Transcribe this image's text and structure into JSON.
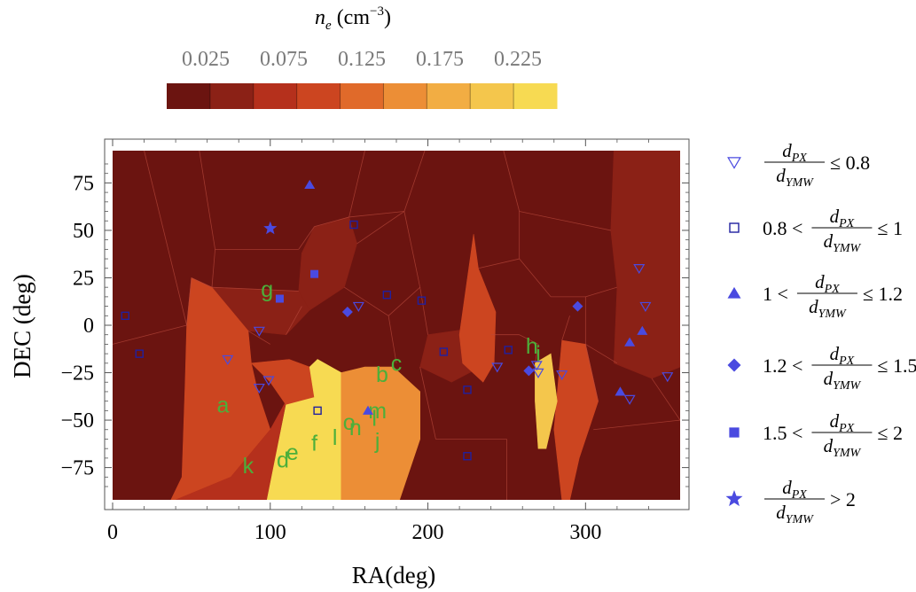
{
  "chart_data": {
    "type": "scatter",
    "xlabel": "RA(deg)",
    "ylabel": "DEC (deg)",
    "xlim": [
      0,
      360
    ],
    "ylim": [
      -92,
      92
    ],
    "xticks": [
      "0",
      "100",
      "200",
      "300"
    ],
    "xtick_values": [
      0,
      100,
      200,
      300
    ],
    "yticks": [
      "75",
      "50",
      "25",
      "0",
      "−25",
      "−50",
      "−75"
    ],
    "ytick_values": [
      75,
      50,
      25,
      0,
      -25,
      -50,
      -75
    ],
    "colorbar": {
      "title_base": "n",
      "title_sub": "e",
      "title_unit": " (cm",
      "title_exp": "−3",
      "title_close": ")",
      "tick_labels": [
        "0.025",
        "0.075",
        "0.125",
        "0.175",
        "0.225"
      ],
      "tick_values": [
        0.025,
        0.075,
        0.125,
        0.175,
        0.225
      ],
      "colors": [
        "#6b1410",
        "#8b2116",
        "#b5301c",
        "#cc4520",
        "#e06a2a",
        "#ec8e36",
        "#f2ad43",
        "#f4c64c",
        "#f7da52"
      ]
    },
    "regions": [
      {
        "color": "#6b1410",
        "points": [
          [
            0,
            92
          ],
          [
            360,
            92
          ],
          [
            360,
            -92
          ],
          [
            0,
            -92
          ]
        ]
      },
      {
        "color": "#8b2116",
        "points": [
          [
            318,
            92
          ],
          [
            360,
            92
          ],
          [
            360,
            -22
          ],
          [
            342,
            -28
          ],
          [
            318,
            -20
          ],
          [
            320,
            20
          ],
          [
            316,
            50
          ]
        ]
      },
      {
        "color": "#8b2116",
        "points": [
          [
            128,
            52
          ],
          [
            150,
            57
          ],
          [
            155,
            43
          ],
          [
            147,
            20
          ],
          [
            125,
            8
          ],
          [
            118,
            18
          ],
          [
            120,
            38
          ]
        ]
      },
      {
        "color": "#8b2116",
        "points": [
          [
            63,
            20
          ],
          [
            118,
            18
          ],
          [
            125,
            8
          ],
          [
            110,
            -5
          ],
          [
            86,
            -3
          ],
          [
            78,
            5
          ],
          [
            65,
            10
          ]
        ]
      },
      {
        "color": "#8b2116",
        "points": [
          [
            200,
            -5
          ],
          [
            225,
            -2
          ],
          [
            240,
            -5
          ],
          [
            238,
            -20
          ],
          [
            215,
            -30
          ],
          [
            195,
            -22
          ]
        ]
      },
      {
        "color": "#cc4520",
        "points": [
          [
            50,
            25
          ],
          [
            63,
            20
          ],
          [
            78,
            5
          ],
          [
            86,
            -3
          ],
          [
            88,
            -20
          ],
          [
            92,
            -35
          ],
          [
            100,
            -55
          ],
          [
            75,
            -80
          ],
          [
            40,
            -92
          ],
          [
            37,
            -92
          ],
          [
            44,
            -80
          ],
          [
            46,
            -30
          ],
          [
            47,
            0
          ]
        ]
      },
      {
        "color": "#b5301c",
        "points": [
          [
            40,
            -92
          ],
          [
            75,
            -80
          ],
          [
            100,
            -55
          ],
          [
            110,
            -40
          ],
          [
            98,
            -92
          ]
        ]
      },
      {
        "color": "#cc4520",
        "points": [
          [
            88,
            -20
          ],
          [
            112,
            -18
          ],
          [
            125,
            -22
          ],
          [
            128,
            -38
          ],
          [
            110,
            -42
          ],
          [
            100,
            -30
          ]
        ]
      },
      {
        "color": "#cc4520",
        "points": [
          [
            229,
            48
          ],
          [
            232,
            30
          ],
          [
            243,
            7
          ],
          [
            242,
            -20
          ],
          [
            235,
            -30
          ],
          [
            222,
            -20
          ],
          [
            220,
            -5
          ]
        ]
      },
      {
        "color": "#cc4520",
        "points": [
          [
            285,
            -8
          ],
          [
            300,
            -10
          ],
          [
            308,
            -40
          ],
          [
            296,
            -70
          ],
          [
            290,
            -92
          ],
          [
            285,
            -92
          ],
          [
            280,
            -55
          ]
        ]
      },
      {
        "color": "#f7da52",
        "points": [
          [
            110,
            -42
          ],
          [
            128,
            -38
          ],
          [
            125,
            -22
          ],
          [
            130,
            -18
          ],
          [
            145,
            -25
          ],
          [
            145,
            -92
          ],
          [
            98,
            -92
          ]
        ]
      },
      {
        "color": "#ec8e36",
        "points": [
          [
            145,
            -25
          ],
          [
            160,
            -22
          ],
          [
            178,
            -22
          ],
          [
            195,
            -35
          ],
          [
            195,
            -60
          ],
          [
            182,
            -92
          ],
          [
            145,
            -92
          ]
        ]
      },
      {
        "color": "#f4c64c",
        "points": [
          [
            268,
            -20
          ],
          [
            278,
            -15
          ],
          [
            282,
            -40
          ],
          [
            275,
            -65
          ],
          [
            270,
            -65
          ],
          [
            268,
            -40
          ]
        ]
      }
    ],
    "vor_lines": [
      [
        [
          0,
          -10
        ],
        [
          47,
          0
        ]
      ],
      [
        [
          47,
          0
        ],
        [
          50,
          25
        ]
      ],
      [
        [
          50,
          25
        ],
        [
          63,
          20
        ]
      ],
      [
        [
          63,
          20
        ],
        [
          118,
          18
        ]
      ],
      [
        [
          20,
          92
        ],
        [
          47,
          0
        ]
      ],
      [
        [
          55,
          92
        ],
        [
          65,
          40
        ]
      ],
      [
        [
          65,
          40
        ],
        [
          63,
          20
        ]
      ],
      [
        [
          65,
          40
        ],
        [
          118,
          40
        ]
      ],
      [
        [
          118,
          40
        ],
        [
          128,
          52
        ]
      ],
      [
        [
          128,
          52
        ],
        [
          150,
          57
        ]
      ],
      [
        [
          150,
          57
        ],
        [
          160,
          92
        ]
      ],
      [
        [
          150,
          57
        ],
        [
          185,
          60
        ]
      ],
      [
        [
          185,
          60
        ],
        [
          198,
          92
        ]
      ],
      [
        [
          185,
          60
        ],
        [
          195,
          20
        ]
      ],
      [
        [
          195,
          20
        ],
        [
          200,
          -5
        ]
      ],
      [
        [
          155,
          43
        ],
        [
          185,
          60
        ]
      ],
      [
        [
          147,
          20
        ],
        [
          175,
          5
        ]
      ],
      [
        [
          175,
          5
        ],
        [
          195,
          20
        ]
      ],
      [
        [
          175,
          5
        ],
        [
          180,
          -20
        ]
      ],
      [
        [
          195,
          -22
        ],
        [
          205,
          -60
        ]
      ],
      [
        [
          205,
          -60
        ],
        [
          250,
          -60
        ]
      ],
      [
        [
          250,
          -60
        ],
        [
          250,
          -92
        ]
      ],
      [
        [
          240,
          -5
        ],
        [
          258,
          -5
        ]
      ],
      [
        [
          258,
          -5
        ],
        [
          270,
          -10
        ]
      ],
      [
        [
          232,
          30
        ],
        [
          258,
          35
        ]
      ],
      [
        [
          258,
          35
        ],
        [
          258,
          60
        ]
      ],
      [
        [
          258,
          60
        ],
        [
          248,
          92
        ]
      ],
      [
        [
          258,
          60
        ],
        [
          316,
          50
        ]
      ],
      [
        [
          258,
          35
        ],
        [
          278,
          15
        ]
      ],
      [
        [
          278,
          15
        ],
        [
          300,
          15
        ]
      ],
      [
        [
          300,
          15
        ],
        [
          320,
          20
        ]
      ],
      [
        [
          300,
          15
        ],
        [
          300,
          -10
        ]
      ],
      [
        [
          300,
          -10
        ],
        [
          320,
          -20
        ]
      ],
      [
        [
          342,
          -28
        ],
        [
          360,
          -50
        ]
      ],
      [
        [
          305,
          -55
        ],
        [
          360,
          -50
        ]
      ],
      [
        [
          300,
          -10
        ],
        [
          308,
          -40
        ]
      ],
      [
        [
          290,
          5
        ],
        [
          285,
          -8
        ]
      ],
      [
        [
          270,
          -10
        ],
        [
          268,
          -20
        ]
      ],
      [
        [
          110,
          -5
        ],
        [
          120,
          10
        ]
      ],
      [
        [
          86,
          -3
        ],
        [
          100,
          -10
        ]
      ]
    ],
    "group_labels": [
      {
        "text": "a",
        "x": 70,
        "y": -46
      },
      {
        "text": "b",
        "x": 171,
        "y": -30
      },
      {
        "text": "c",
        "x": 180,
        "y": -24
      },
      {
        "text": "d",
        "x": 108,
        "y": -75
      },
      {
        "text": "e",
        "x": 114,
        "y": -71
      },
      {
        "text": "f",
        "x": 128,
        "y": -66
      },
      {
        "text": "g",
        "x": 98,
        "y": 15
      },
      {
        "text": "h",
        "x": 266,
        "y": -15
      },
      {
        "text": "i",
        "x": 270,
        "y": -19
      },
      {
        "text": "j",
        "x": 168,
        "y": -65
      },
      {
        "text": "k",
        "x": 86,
        "y": -78
      },
      {
        "text": "l",
        "x": 141,
        "y": -63
      },
      {
        "text": "l",
        "x": 166,
        "y": -53
      },
      {
        "text": "m",
        "x": 168,
        "y": -49
      },
      {
        "text": "n",
        "x": 154,
        "y": -58
      },
      {
        "text": "o",
        "x": 150,
        "y": -55
      }
    ],
    "series": [
      {
        "name": "d_PX/d_YMW ≤ 0.8",
        "marker": "triangle-down-open",
        "points": [
          [
            73,
            -18
          ],
          [
            93,
            -3
          ],
          [
            93,
            -33
          ],
          [
            99,
            -29
          ],
          [
            156,
            10
          ],
          [
            244,
            -22
          ],
          [
            269,
            -21
          ],
          [
            270,
            -25
          ],
          [
            285,
            -26
          ],
          [
            328,
            -39
          ],
          [
            334,
            30
          ],
          [
            338,
            10
          ],
          [
            352,
            -27
          ]
        ]
      },
      {
        "name": "0.8 < d_PX/d_YMW ≤ 1",
        "marker": "square-open",
        "points": [
          [
            8,
            5
          ],
          [
            17,
            -15
          ],
          [
            130,
            -45
          ],
          [
            153,
            53
          ],
          [
            174,
            16
          ],
          [
            196,
            13
          ],
          [
            210,
            -14
          ],
          [
            225,
            -34
          ],
          [
            225,
            -69
          ],
          [
            251,
            -13
          ]
        ]
      },
      {
        "name": "1 < d_PX/d_YMW ≤ 1.2",
        "marker": "triangle-up",
        "points": [
          [
            125,
            74
          ],
          [
            162,
            -45
          ],
          [
            322,
            -35
          ],
          [
            328,
            -9
          ],
          [
            336,
            -3
          ]
        ]
      },
      {
        "name": "1.2 < d_PX/d_YMW ≤ 1.5",
        "marker": "diamond",
        "points": [
          [
            149,
            7
          ],
          [
            264,
            -24
          ],
          [
            295,
            10
          ]
        ]
      },
      {
        "name": "1.5 < d_PX/d_YMW ≤ 2",
        "marker": "square",
        "points": [
          [
            106,
            14
          ],
          [
            128,
            27
          ]
        ]
      },
      {
        "name": "d_PX/d_YMW > 2",
        "marker": "star",
        "points": [
          [
            100,
            51
          ]
        ]
      }
    ],
    "legend": {
      "placement": "right",
      "marker_color": "#4a4ae0",
      "label_color": "#1b1b7a",
      "d": "d",
      "px": "PX",
      "ymw": "YMW",
      "entries": [
        {
          "prefix": "",
          "suffix": "≤ 0.8"
        },
        {
          "prefix": "0.8 <",
          "suffix": "≤ 1"
        },
        {
          "prefix": "1 <",
          "suffix": "≤ 1.2"
        },
        {
          "prefix": "1.2 <",
          "suffix": "≤ 1.5"
        },
        {
          "prefix": "1.5 <",
          "suffix": "≤ 2"
        },
        {
          "prefix": "",
          "suffix": "> 2"
        }
      ]
    }
  }
}
